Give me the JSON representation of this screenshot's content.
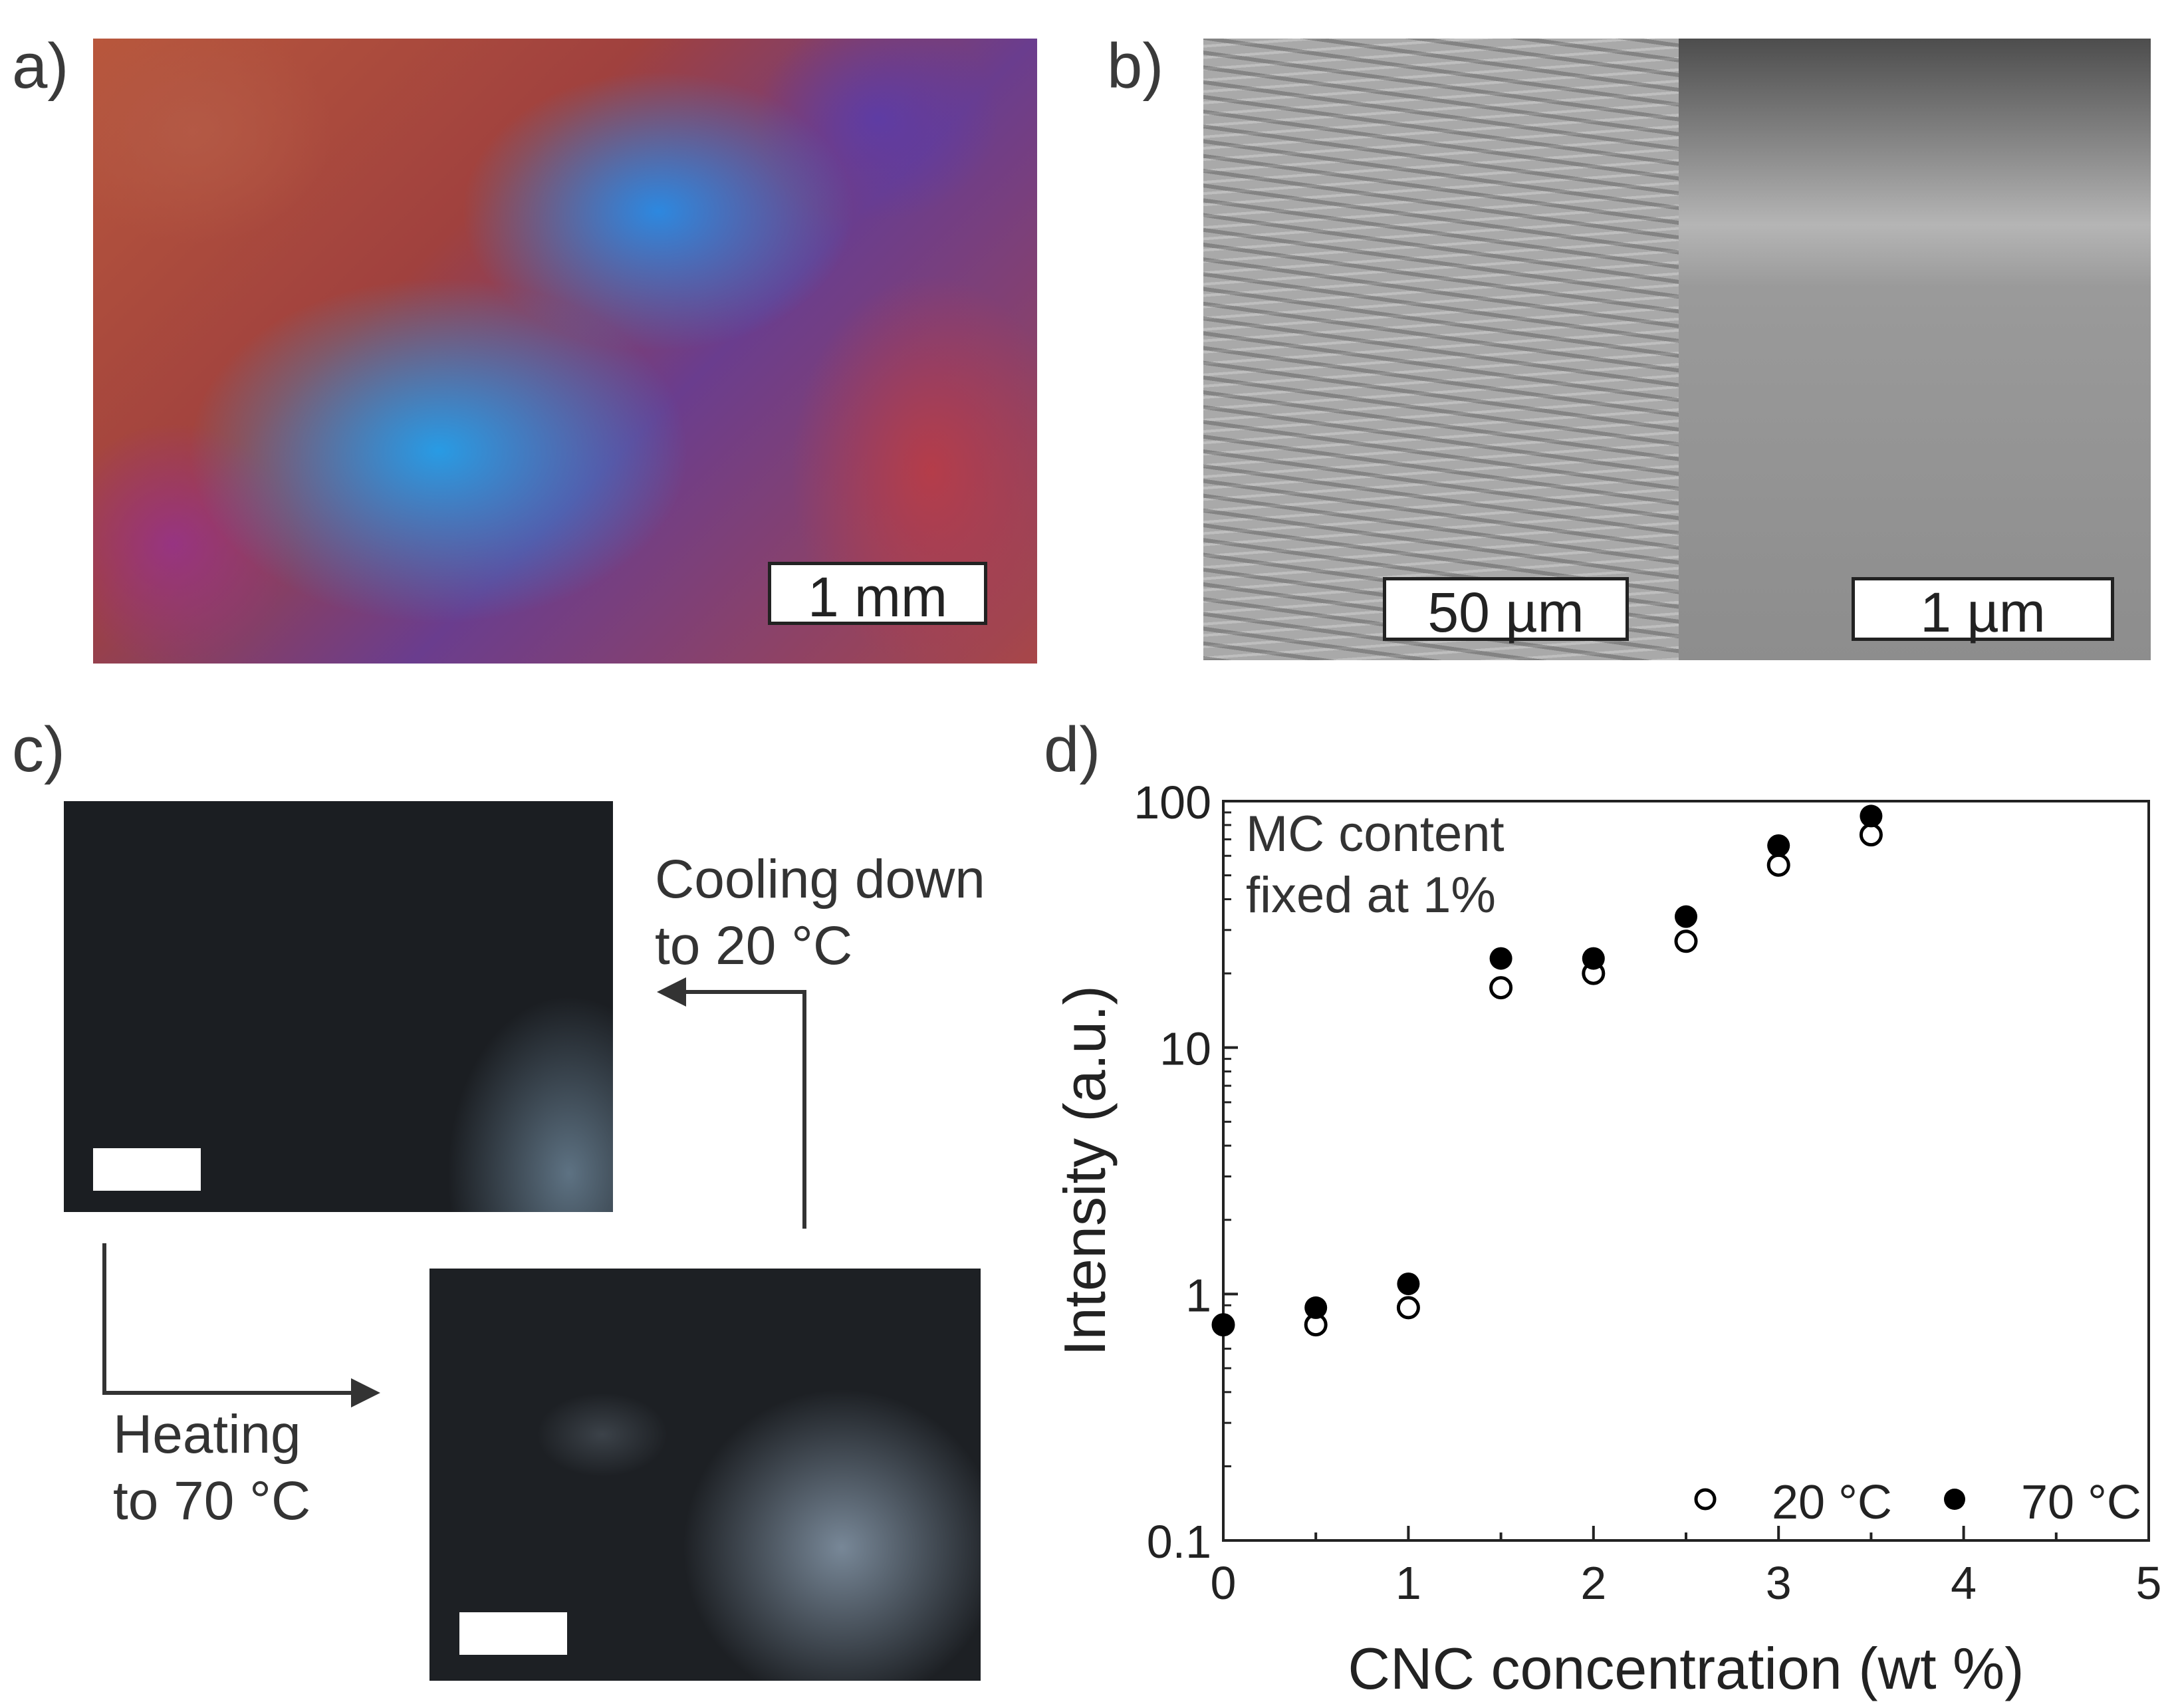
{
  "panels": {
    "a": {
      "label": "a)",
      "scale_bar": "1 mm"
    },
    "b": {
      "label": "b)",
      "scale_bar_left": "50 µm",
      "scale_bar_right": "1 µm"
    },
    "c": {
      "label": "c)",
      "cooling_text": "Cooling down\nto 20 °C",
      "heating_text": "Heating\nto 70 °C"
    },
    "d": {
      "label": "d)"
    }
  },
  "chart_data": {
    "type": "scatter",
    "xlabel": "CNC concentration (wt %)",
    "ylabel": "Intensity (a.u.)",
    "xlim": [
      0,
      5
    ],
    "ylim": [
      0.1,
      100
    ],
    "yscale": "log",
    "x_ticks": [
      "0",
      "1",
      "2",
      "3",
      "4",
      "5"
    ],
    "y_ticks": [
      "0.1",
      "1",
      "10",
      "100"
    ],
    "annotation": "MC content\nfixed at 1%",
    "legend_position": "bottom-right",
    "series": [
      {
        "name": "20 °C",
        "marker": "open-circle",
        "x": [
          0,
          0.5,
          1,
          1.5,
          2,
          2.5,
          3,
          3.5
        ],
        "y": [
          0.75,
          0.75,
          0.88,
          17.5,
          20,
          27,
          55,
          73
        ]
      },
      {
        "name": "70 °C",
        "marker": "filled-circle",
        "x": [
          0,
          0.5,
          1,
          1.5,
          2,
          2.5,
          3,
          3.5
        ],
        "y": [
          0.75,
          0.88,
          1.1,
          23,
          23,
          34,
          66,
          87
        ]
      }
    ]
  },
  "colors": {
    "axis": "#222222",
    "marker": "#000000",
    "arrow": "#333333"
  }
}
